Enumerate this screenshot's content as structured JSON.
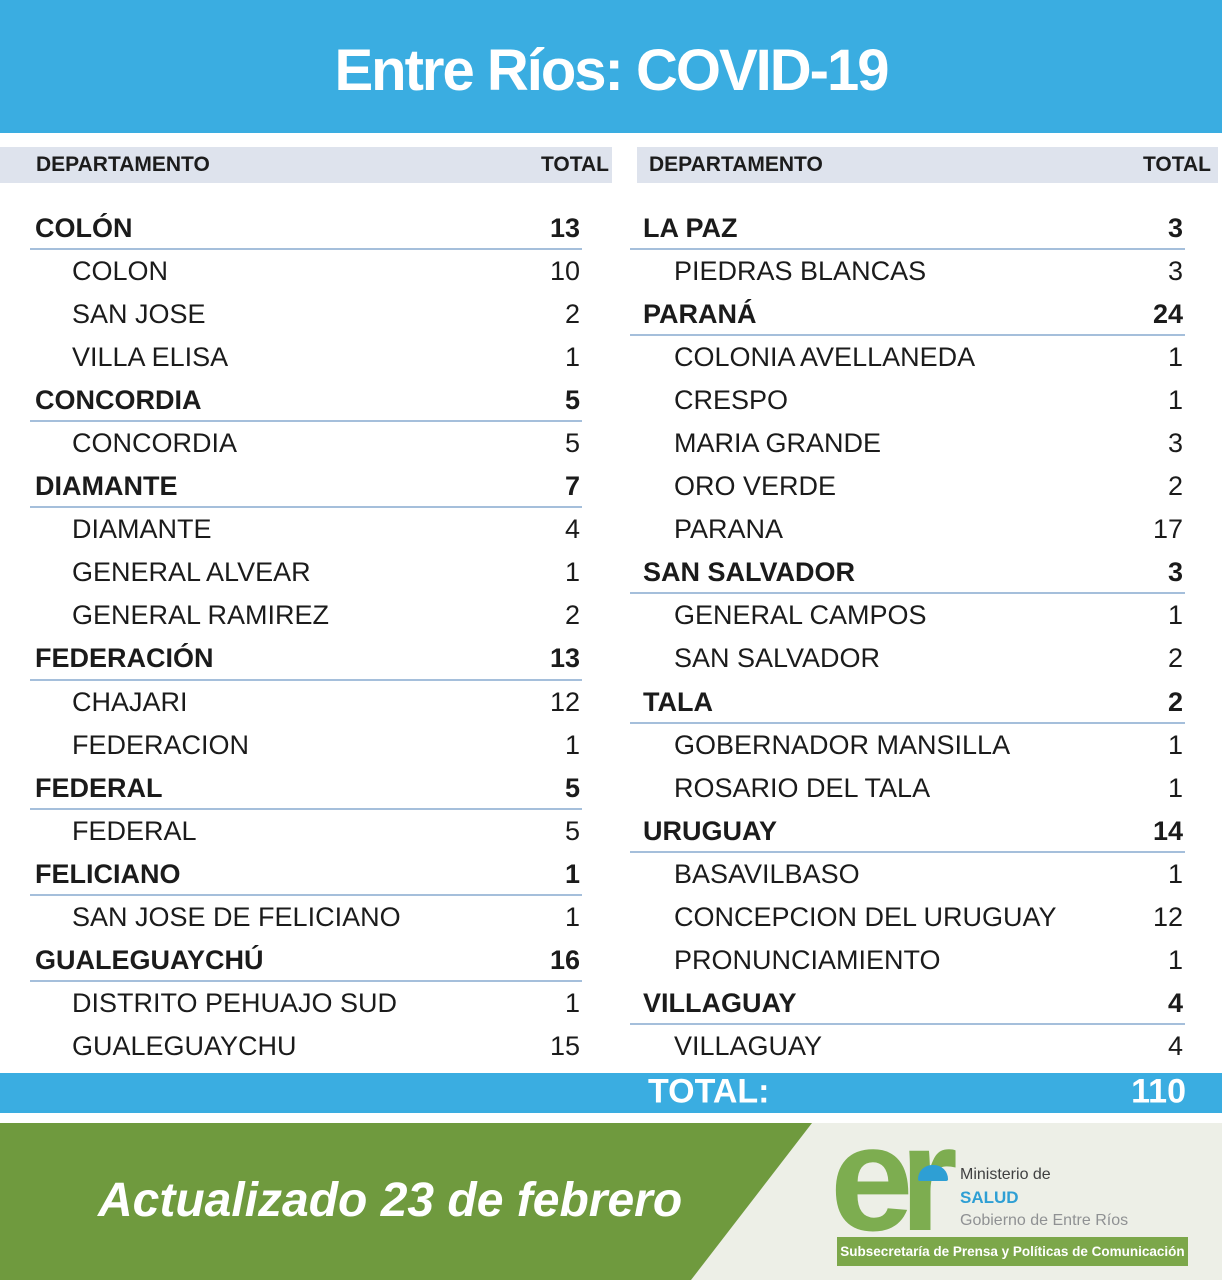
{
  "title": "Entre Ríos: COVID-19",
  "table": {
    "left": {
      "header": {
        "department": "DEPARTAMENTO",
        "total": "TOTAL"
      },
      "rows": [
        {
          "type": "dept",
          "label": "COLÓN",
          "value": 13
        },
        {
          "type": "sub",
          "label": "COLON",
          "value": 10
        },
        {
          "type": "sub",
          "label": "SAN JOSE",
          "value": 2
        },
        {
          "type": "sub",
          "label": "VILLA ELISA",
          "value": 1
        },
        {
          "type": "dept",
          "label": "CONCORDIA",
          "value": 5
        },
        {
          "type": "sub",
          "label": "CONCORDIA",
          "value": 5
        },
        {
          "type": "dept",
          "label": "DIAMANTE",
          "value": 7
        },
        {
          "type": "sub",
          "label": "DIAMANTE",
          "value": 4
        },
        {
          "type": "sub",
          "label": "GENERAL ALVEAR",
          "value": 1
        },
        {
          "type": "sub",
          "label": "GENERAL RAMIREZ",
          "value": 2
        },
        {
          "type": "dept",
          "label": "FEDERACIÓN",
          "value": 13
        },
        {
          "type": "sub",
          "label": "CHAJARI",
          "value": 12
        },
        {
          "type": "sub",
          "label": "FEDERACION",
          "value": 1
        },
        {
          "type": "dept",
          "label": "FEDERAL",
          "value": 5
        },
        {
          "type": "sub",
          "label": "FEDERAL",
          "value": 5
        },
        {
          "type": "dept",
          "label": "FELICIANO",
          "value": 1
        },
        {
          "type": "sub",
          "label": "SAN JOSE DE FELICIANO",
          "value": 1
        },
        {
          "type": "dept",
          "label": "GUALEGUAYCHÚ",
          "value": 16
        },
        {
          "type": "sub",
          "label": "DISTRITO PEHUAJO SUD",
          "value": 1
        },
        {
          "type": "sub",
          "label": "GUALEGUAYCHU",
          "value": 15
        }
      ]
    },
    "right": {
      "header": {
        "department": "DEPARTAMENTO",
        "total": "TOTAL"
      },
      "rows": [
        {
          "type": "dept",
          "label": "LA PAZ",
          "value": 3
        },
        {
          "type": "sub",
          "label": "PIEDRAS BLANCAS",
          "value": 3
        },
        {
          "type": "dept",
          "label": "PARANÁ",
          "value": 24
        },
        {
          "type": "sub",
          "label": "COLONIA AVELLANEDA",
          "value": 1
        },
        {
          "type": "sub",
          "label": "CRESPO",
          "value": 1
        },
        {
          "type": "sub",
          "label": "MARIA GRANDE",
          "value": 3
        },
        {
          "type": "sub",
          "label": "ORO VERDE",
          "value": 2
        },
        {
          "type": "sub",
          "label": "PARANA",
          "value": 17
        },
        {
          "type": "dept",
          "label": "SAN SALVADOR",
          "value": 3
        },
        {
          "type": "sub",
          "label": "GENERAL CAMPOS",
          "value": 1
        },
        {
          "type": "sub",
          "label": "SAN SALVADOR",
          "value": 2
        },
        {
          "type": "dept",
          "label": "TALA",
          "value": 2
        },
        {
          "type": "sub",
          "label": "GOBERNADOR MANSILLA",
          "value": 1
        },
        {
          "type": "sub",
          "label": "ROSARIO DEL TALA",
          "value": 1
        },
        {
          "type": "dept",
          "label": "URUGUAY",
          "value": 14
        },
        {
          "type": "sub",
          "label": "BASAVILBASO",
          "value": 1
        },
        {
          "type": "sub",
          "label": "CONCEPCION DEL URUGUAY",
          "value": 12
        },
        {
          "type": "sub",
          "label": "PRONUNCIAMIENTO",
          "value": 1
        },
        {
          "type": "dept",
          "label": "VILLAGUAY",
          "value": 4
        },
        {
          "type": "sub",
          "label": "VILLAGUAY",
          "value": 4
        }
      ]
    }
  },
  "total_bar": {
    "label": "TOTAL:",
    "value": "110"
  },
  "footer": {
    "updated": "Actualizado 23 de febrero",
    "logo_text": "er",
    "ministry_line1": "Ministerio de",
    "ministry_line2": "SALUD",
    "ministry_line3": "Gobierno de Entre Ríos",
    "subsecretaria": "Subsecretaría de Prensa y Políticas de Comunicación"
  },
  "colors": {
    "accent_blue": "#3AADE1",
    "band_gray": "#DEE3ED",
    "rule_blue": "#A5BFDB",
    "banner_green": "#6F9A3E",
    "box_green": "#7CA74A",
    "logo_green": "#7DAD50",
    "salud_blue": "#2E9FD4",
    "footer_bg": "#EDEFE7"
  }
}
